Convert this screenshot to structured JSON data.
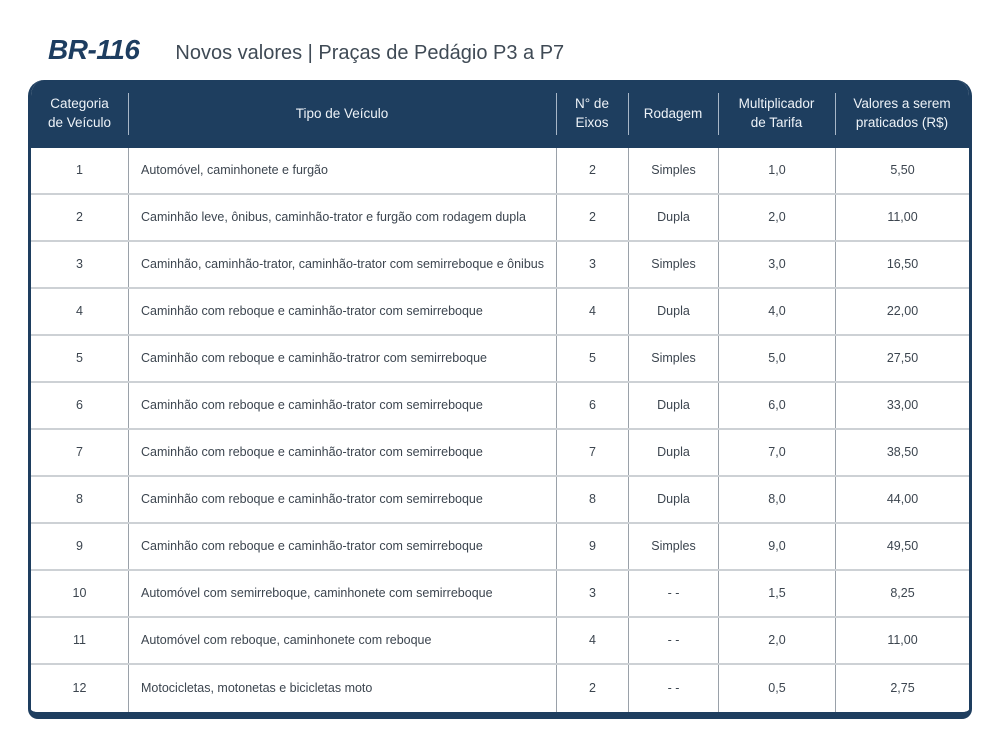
{
  "page": {
    "title": "BR-116",
    "subtitle": "Novos valores | Praças de Pedágio P3 a P7"
  },
  "colors": {
    "navy": "#1e3e5f",
    "title_navy": "#1d3d60",
    "subtitle_gray": "#3f4a55",
    "body_text": "#3c454f",
    "header_text": "#eef3f8",
    "row_sep": "#cdd1d5",
    "col_sep": "#9aa1a9",
    "page_bg": "#ffffff"
  },
  "table": {
    "columns": [
      {
        "id": "categoria",
        "label": "Categoria\nde Veículo"
      },
      {
        "id": "tipo",
        "label": "Tipo de Veículo"
      },
      {
        "id": "eixos",
        "label": "N° de\nEixos"
      },
      {
        "id": "rodagem",
        "label": "Rodagem"
      },
      {
        "id": "multiplicador",
        "label": "Multiplicador\nde Tarifa"
      },
      {
        "id": "valores",
        "label": "Valores a serem\npraticados (R$)"
      }
    ],
    "rows": [
      {
        "categoria": "1",
        "tipo": "Automóvel, caminhonete e furgão",
        "eixos": "2",
        "rodagem": "Simples",
        "multiplicador": "1,0",
        "valor": "5,50"
      },
      {
        "categoria": "2",
        "tipo": "Caminhão leve, ônibus, caminhão-trator e furgão com rodagem dupla",
        "eixos": "2",
        "rodagem": "Dupla",
        "multiplicador": "2,0",
        "valor": "11,00"
      },
      {
        "categoria": "3",
        "tipo": "Caminhão, caminhão-trator, caminhão-trator com semirreboque e ônibus",
        "eixos": "3",
        "rodagem": "Simples",
        "multiplicador": "3,0",
        "valor": "16,50"
      },
      {
        "categoria": "4",
        "tipo": "Caminhão com reboque e caminhão-trator com semirreboque",
        "eixos": "4",
        "rodagem": "Dupla",
        "multiplicador": "4,0",
        "valor": "22,00"
      },
      {
        "categoria": "5",
        "tipo": "Caminhão com reboque e caminhão-tratror com semirreboque",
        "eixos": "5",
        "rodagem": "Simples",
        "multiplicador": "5,0",
        "valor": "27,50"
      },
      {
        "categoria": "6",
        "tipo": "Caminhão com reboque e caminhão-trator com semirreboque",
        "eixos": "6",
        "rodagem": "Dupla",
        "multiplicador": "6,0",
        "valor": "33,00"
      },
      {
        "categoria": "7",
        "tipo": "Caminhão com reboque e caminhão-trator com semirreboque",
        "eixos": "7",
        "rodagem": "Dupla",
        "multiplicador": "7,0",
        "valor": "38,50"
      },
      {
        "categoria": "8",
        "tipo": "Caminhão com reboque e caminhão-trator com semirreboque",
        "eixos": "8",
        "rodagem": "Dupla",
        "multiplicador": "8,0",
        "valor": "44,00"
      },
      {
        "categoria": "9",
        "tipo": "Caminhão com reboque e caminhão-trator com semirreboque",
        "eixos": "9",
        "rodagem": "Simples",
        "multiplicador": "9,0",
        "valor": "49,50"
      },
      {
        "categoria": "10",
        "tipo": "Automóvel com semirreboque, caminhonete com semirreboque",
        "eixos": "3",
        "rodagem": "- -",
        "multiplicador": "1,5",
        "valor": "8,25"
      },
      {
        "categoria": "11",
        "tipo": "Automóvel com reboque, caminhonete com reboque",
        "eixos": "4",
        "rodagem": "- -",
        "multiplicador": "2,0",
        "valor": "11,00"
      },
      {
        "categoria": "12",
        "tipo": "Motocicletas, motonetas e bicicletas moto",
        "eixos": "2",
        "rodagem": "- -",
        "multiplicador": "0,5",
        "valor": "2,75"
      }
    ]
  },
  "chart_data": {
    "type": "table",
    "title": "BR-116 — Novos valores | Praças de Pedágio P3 a P7",
    "columns": [
      "Categoria de Veículo",
      "Tipo de Veículo",
      "N° de Eixos",
      "Rodagem",
      "Multiplicador de Tarifa",
      "Valores a serem praticados (R$)"
    ],
    "rows": [
      [
        "1",
        "Automóvel, caminhonete e furgão",
        "2",
        "Simples",
        "1,0",
        "5,50"
      ],
      [
        "2",
        "Caminhão leve, ônibus, caminhão-trator e furgão com rodagem dupla",
        "2",
        "Dupla",
        "2,0",
        "11,00"
      ],
      [
        "3",
        "Caminhão, caminhão-trator, caminhão-trator com semirreboque e ônibus",
        "3",
        "Simples",
        "3,0",
        "16,50"
      ],
      [
        "4",
        "Caminhão com reboque e caminhão-trator com semirreboque",
        "4",
        "Dupla",
        "4,0",
        "22,00"
      ],
      [
        "5",
        "Caminhão com reboque e caminhão-tratror com semirreboque",
        "5",
        "Simples",
        "5,0",
        "27,50"
      ],
      [
        "6",
        "Caminhão com reboque e caminhão-trator com semirreboque",
        "6",
        "Dupla",
        "6,0",
        "33,00"
      ],
      [
        "7",
        "Caminhão com reboque e caminhão-trator com semirreboque",
        "7",
        "Dupla",
        "7,0",
        "38,50"
      ],
      [
        "8",
        "Caminhão com reboque e caminhão-trator com semirreboque",
        "8",
        "Dupla",
        "8,0",
        "44,00"
      ],
      [
        "9",
        "Caminhão com reboque e caminhão-trator com semirreboque",
        "9",
        "Simples",
        "9,0",
        "49,50"
      ],
      [
        "10",
        "Automóvel com semirreboque, caminhonete com semirreboque",
        "3",
        "- -",
        "1,5",
        "8,25"
      ],
      [
        "11",
        "Automóvel com reboque, caminhonete com reboque",
        "4",
        "- -",
        "2,0",
        "11,00"
      ],
      [
        "12",
        "Motocicletas, motonetas e bicicletas moto",
        "2",
        "- -",
        "0,5",
        "2,75"
      ]
    ]
  }
}
